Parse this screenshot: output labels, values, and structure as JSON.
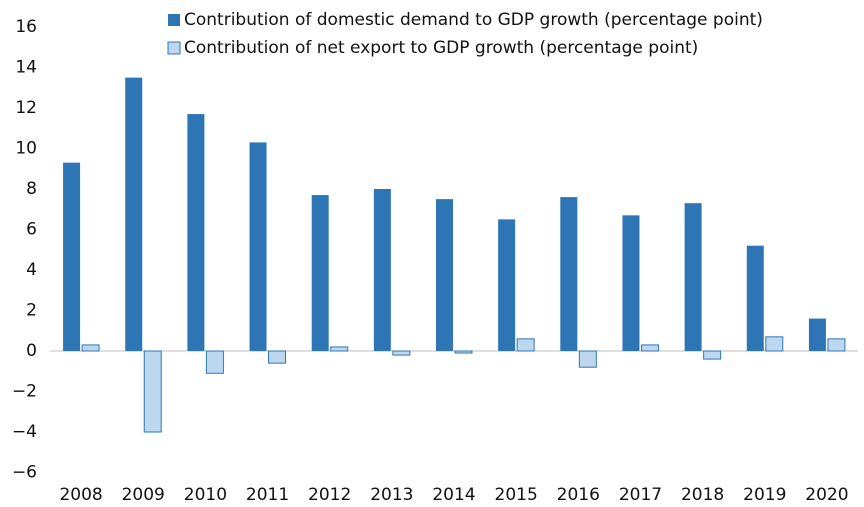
{
  "chart_data": {
    "type": "bar",
    "categories": [
      "2008",
      "2009",
      "2010",
      "2011",
      "2012",
      "2013",
      "2014",
      "2015",
      "2016",
      "2017",
      "2018",
      "2019",
      "2020"
    ],
    "series": [
      {
        "name": "Contribution of domestic demand to GDP growth (percentage point)",
        "color": "#2e75b6",
        "values": [
          9.3,
          13.5,
          11.7,
          10.3,
          7.7,
          8.0,
          7.5,
          6.5,
          7.6,
          6.7,
          7.3,
          5.2,
          1.6
        ]
      },
      {
        "name": "Contribution of net export to GDP growth (percentage point)",
        "color": "#bdd7ee",
        "values": [
          0.3,
          -4.0,
          -1.1,
          -0.6,
          0.2,
          -0.2,
          -0.1,
          0.6,
          -0.8,
          0.3,
          -0.4,
          0.7,
          0.6
        ]
      }
    ],
    "ylim": [
      -6,
      16
    ],
    "yticks": [
      {
        "value": -6,
        "label": "−6"
      },
      {
        "value": -4,
        "label": "−4"
      },
      {
        "value": -2,
        "label": "−2"
      },
      0,
      2,
      4,
      6,
      8,
      10,
      12,
      14,
      16
    ],
    "grid": false,
    "legend": "top"
  }
}
